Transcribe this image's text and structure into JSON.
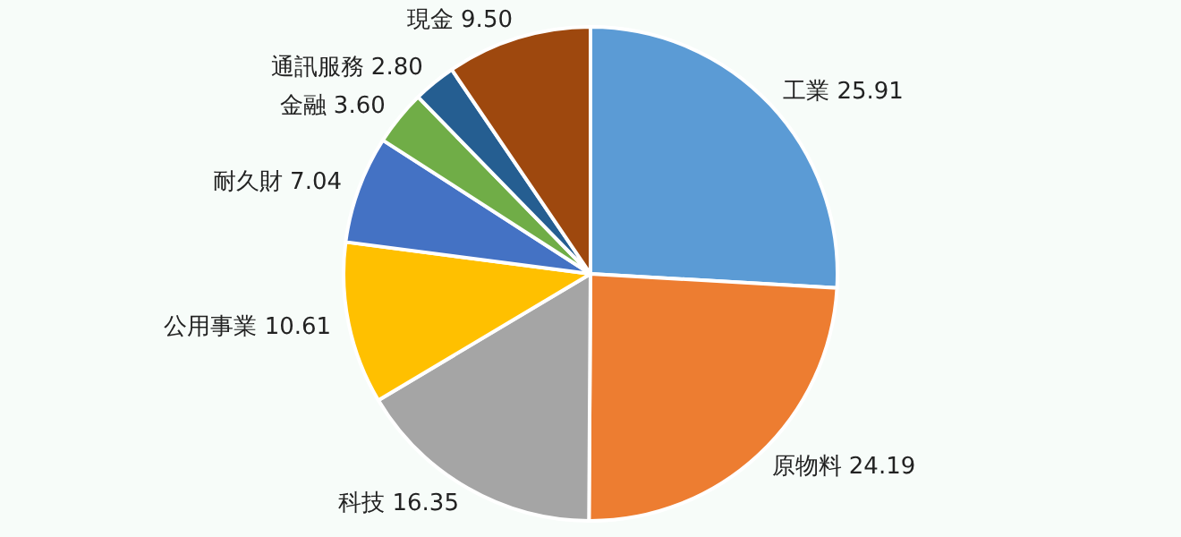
{
  "chart_data": {
    "type": "pie",
    "categories": [
      "工業",
      "原物料",
      "科技",
      "公用事業",
      "耐久財",
      "金融",
      "通訊服務",
      "現金"
    ],
    "values": [
      25.91,
      24.19,
      16.35,
      10.61,
      7.04,
      3.6,
      2.8,
      9.5
    ],
    "colors": [
      "#5b9bd5",
      "#ed7d31",
      "#a5a5a5",
      "#ffc000",
      "#4472c4",
      "#70ad47",
      "#255e91",
      "#9e480e"
    ],
    "value_labels": [
      "25.91",
      "24.19",
      "16.35",
      "10.61",
      "7.04",
      "3.60",
      "2.80",
      "9.50"
    ],
    "legend": false
  }
}
